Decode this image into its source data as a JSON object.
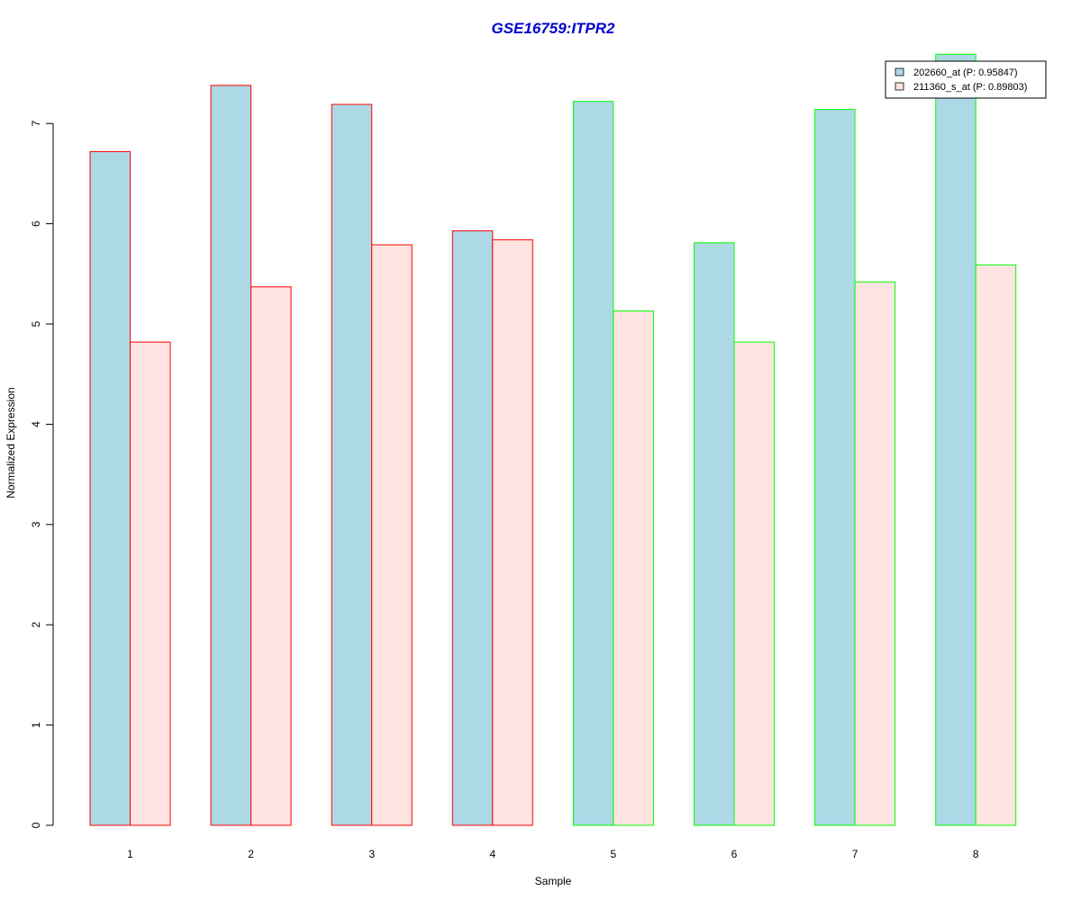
{
  "chart_data": {
    "type": "bar",
    "title": "GSE16759:ITPR2",
    "xlabel": "Sample",
    "ylabel": "Normalized Expression",
    "categories": [
      "1",
      "2",
      "3",
      "4",
      "5",
      "6",
      "7",
      "8"
    ],
    "ylim": [
      0,
      7.7
    ],
    "yticks": [
      "0",
      "1",
      "2",
      "3",
      "4",
      "5",
      "6",
      "7"
    ],
    "series": [
      {
        "name": "202660_at (P: 0.95847)",
        "fill": "#add8e6",
        "values": [
          6.72,
          7.38,
          7.19,
          5.93,
          7.22,
          5.81,
          7.14,
          7.69
        ]
      },
      {
        "name": "211360_s_at (P: 0.89803)",
        "fill": "#ffe4e1",
        "values": [
          4.82,
          5.37,
          5.79,
          5.84,
          5.13,
          4.82,
          5.42,
          5.59
        ]
      }
    ],
    "group_border_colors": [
      "#ff0000",
      "#ff0000",
      "#ff0000",
      "#ff0000",
      "#00ff00",
      "#00ff00",
      "#00ff00",
      "#00ff00"
    ],
    "title_color": "#0000cd",
    "legend_position": "top-right",
    "grid": false
  }
}
